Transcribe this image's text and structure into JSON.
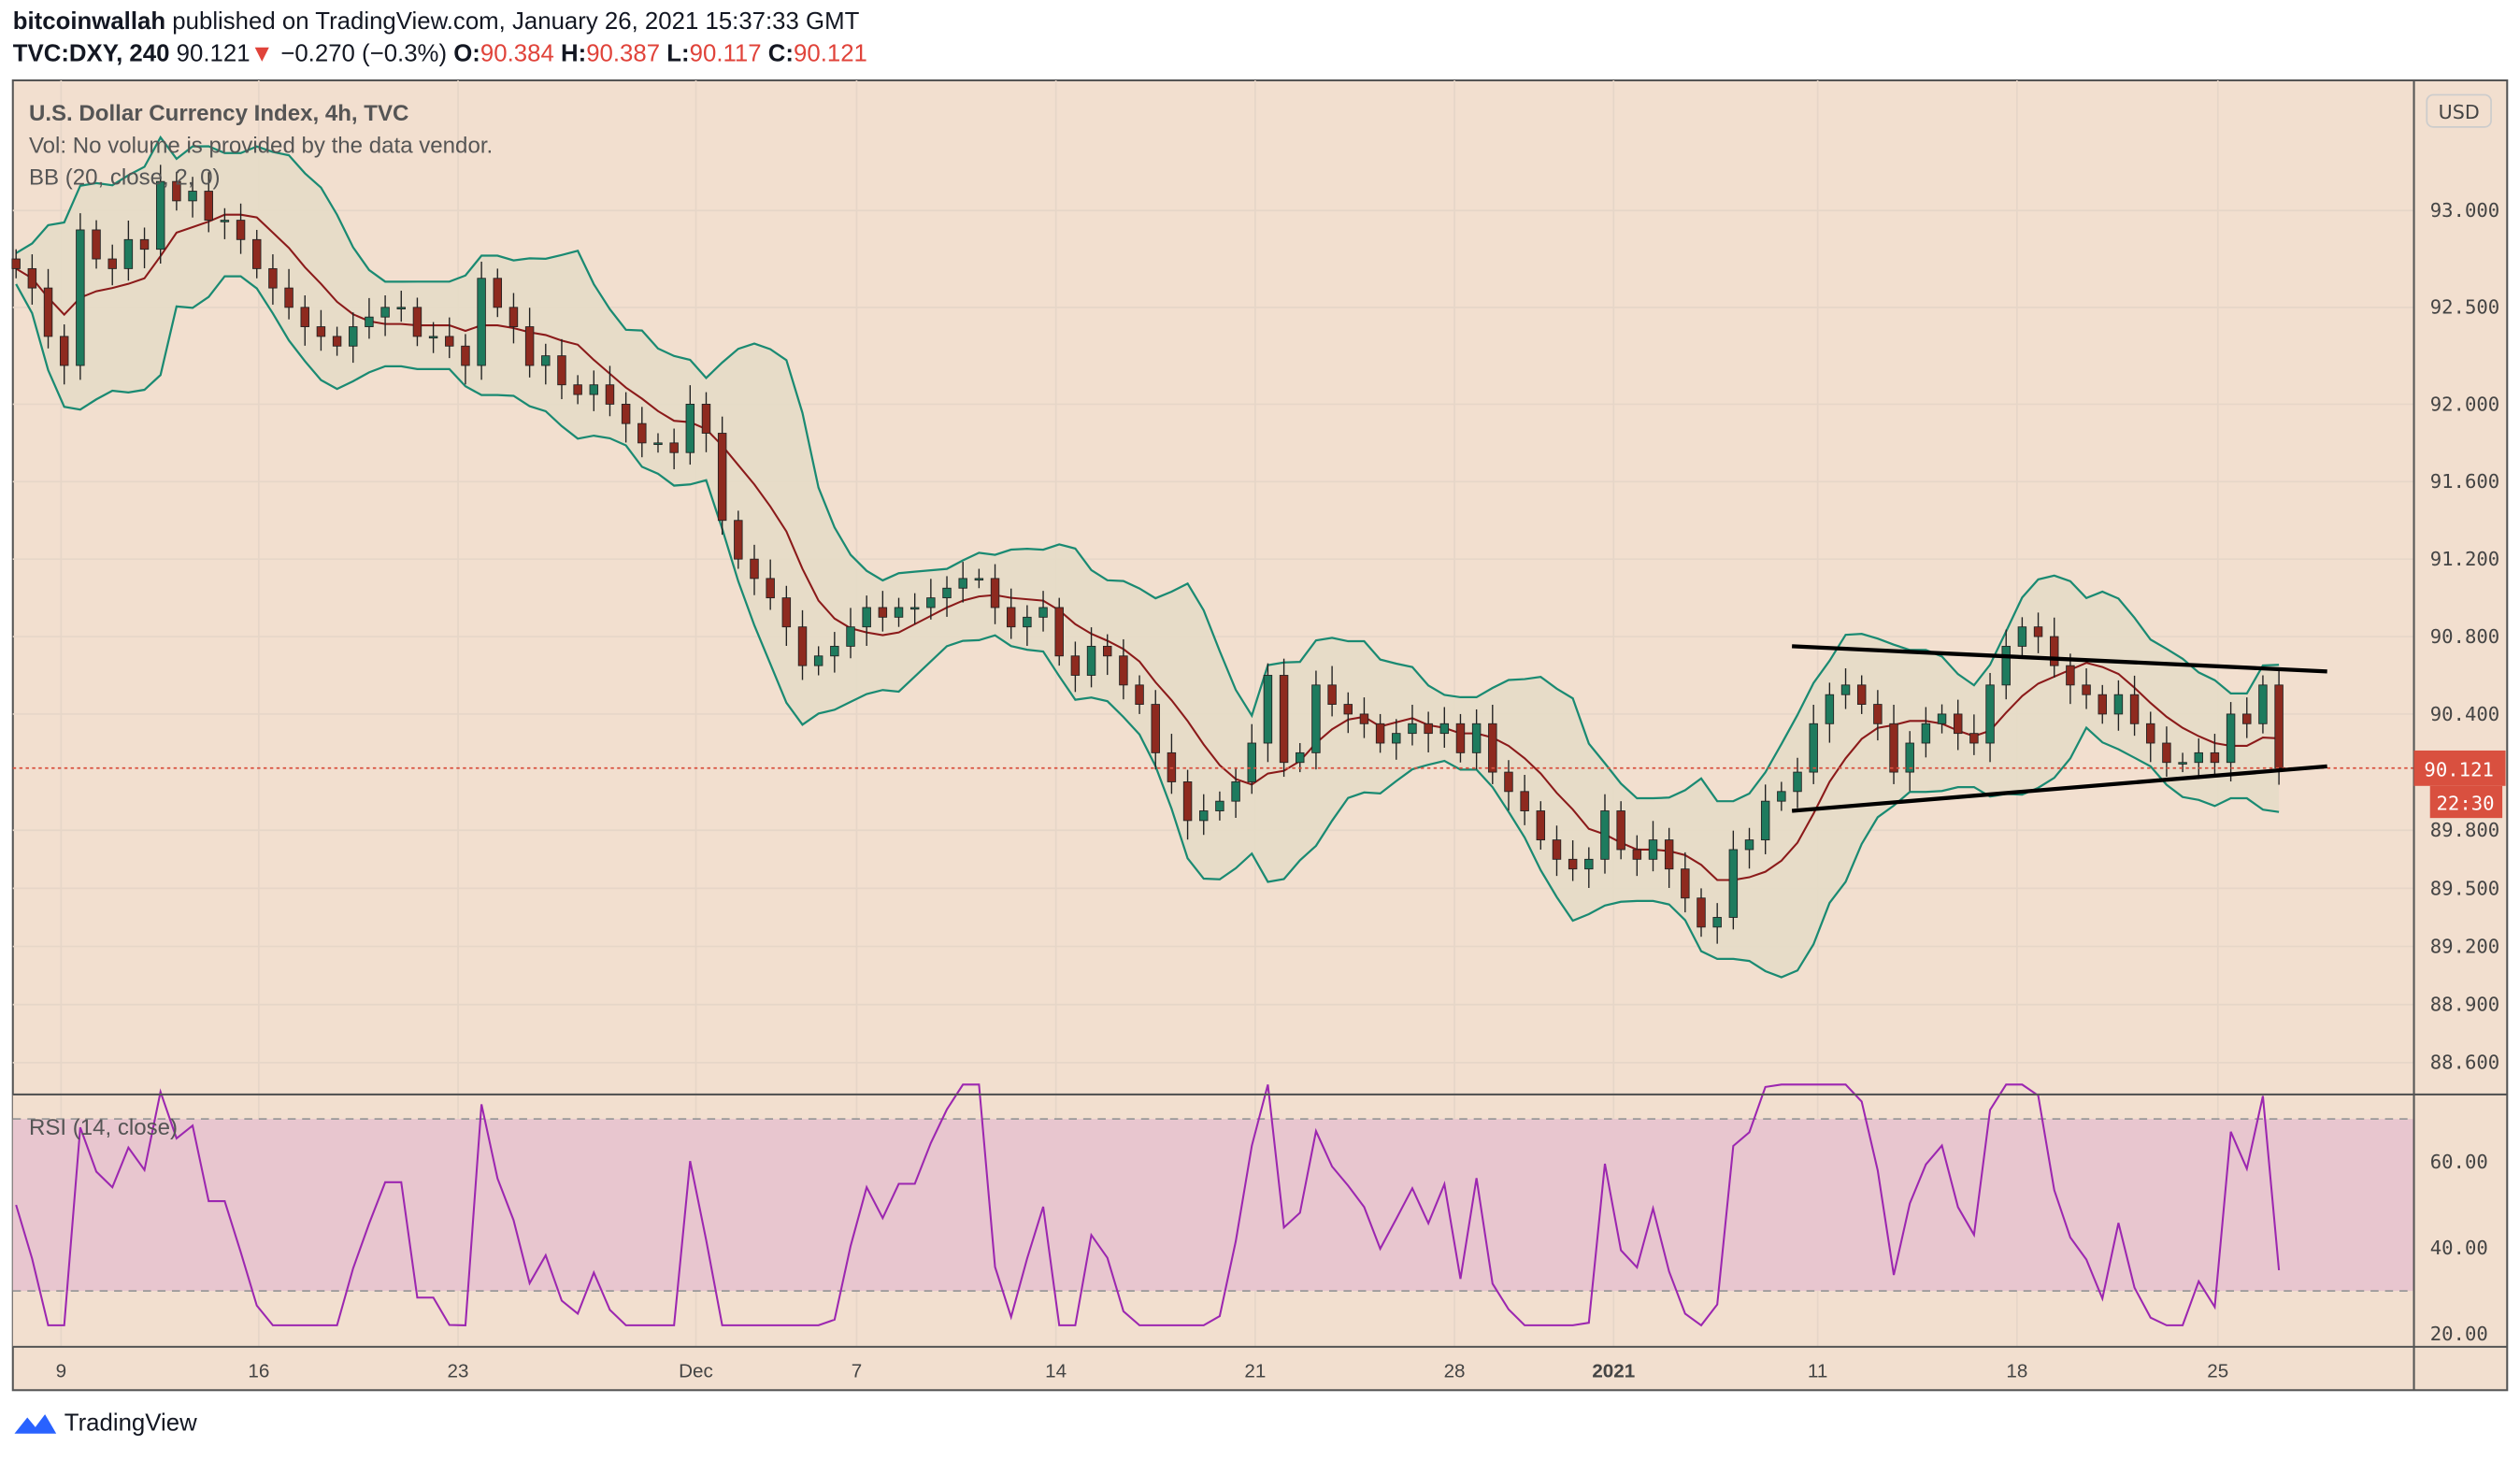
{
  "header": {
    "author": "bitcoinwallah",
    "published": "published on TradingView.com, January 26, 2021 15:37:33 GMT",
    "symbol": "TVC:DXY, 240",
    "last": "90.121",
    "change": "−0.270 (−0.3%)",
    "o_label": "O:",
    "o": "90.384",
    "h_label": "H:",
    "h": "90.387",
    "l_label": "L:",
    "l": "90.117",
    "c_label": "C:",
    "c": "90.121"
  },
  "legend": {
    "title": "U.S. Dollar Currency Index, 4h, TVC",
    "vol": "Vol: No volume is provided by the data vendor.",
    "bb": "BB (20, close, 2, 0)",
    "rsi": "RSI (14, close)"
  },
  "currency_button": "USD",
  "last_price_label": "90.121",
  "countdown": "22:30",
  "footer": {
    "brand": "TradingView"
  },
  "colors": {
    "background": "#f2dfcf",
    "up": "#1e7b5e",
    "down": "#8e2a1f",
    "bb_band": "#1a8a72",
    "bb_basis": "#8b1a1a",
    "rsi": "#9c27b0",
    "last_price": "#d9503f"
  },
  "chart_data": {
    "type": "candlestick",
    "price_ticks": [
      "93.000",
      "92.500",
      "92.000",
      "91.600",
      "91.200",
      "90.800",
      "90.400",
      "89.800",
      "89.500",
      "89.200",
      "88.900",
      "88.600"
    ],
    "rsi_ticks": [
      "60.00",
      "40.00",
      "20.00"
    ],
    "rsi_bands": [
      70,
      30
    ],
    "time_labels": [
      "9",
      "16",
      "23",
      "Dec",
      "7",
      "14",
      "21",
      "28",
      "2021",
      "11",
      "18",
      "25"
    ],
    "closes": [
      92.7,
      92.6,
      92.35,
      92.2,
      92.9,
      92.75,
      92.7,
      92.85,
      92.8,
      93.15,
      93.05,
      93.1,
      92.95,
      92.95,
      92.85,
      92.7,
      92.6,
      92.5,
      92.4,
      92.35,
      92.3,
      92.4,
      92.45,
      92.5,
      92.5,
      92.35,
      92.35,
      92.3,
      92.2,
      92.65,
      92.5,
      92.4,
      92.2,
      92.25,
      92.1,
      92.05,
      92.1,
      92.0,
      91.9,
      91.8,
      91.8,
      91.75,
      92.0,
      91.85,
      91.4,
      91.2,
      91.1,
      91.0,
      90.85,
      90.65,
      90.7,
      90.75,
      90.85,
      90.95,
      90.9,
      90.95,
      90.95,
      91.0,
      91.05,
      91.1,
      91.1,
      90.95,
      90.85,
      90.9,
      90.95,
      90.7,
      90.6,
      90.75,
      90.7,
      90.55,
      90.45,
      90.2,
      90.05,
      89.85,
      89.9,
      89.95,
      90.05,
      90.25,
      90.6,
      90.15,
      90.2,
      90.55,
      90.45,
      90.4,
      90.35,
      90.25,
      90.3,
      90.35,
      90.3,
      90.35,
      90.2,
      90.35,
      90.1,
      90.0,
      89.9,
      89.75,
      89.65,
      89.6,
      89.65,
      89.9,
      89.7,
      89.65,
      89.75,
      89.6,
      89.45,
      89.3,
      89.35,
      89.7,
      89.75,
      89.95,
      90.0,
      90.1,
      90.35,
      90.5,
      90.55,
      90.45,
      90.35,
      90.1,
      90.25,
      90.35,
      90.4,
      90.3,
      90.25,
      90.55,
      90.75,
      90.85,
      90.8,
      90.65,
      90.55,
      90.5,
      90.4,
      90.5,
      90.35,
      90.25,
      90.15,
      90.15,
      90.2,
      90.15,
      90.4,
      90.35,
      90.55,
      90.121
    ],
    "trendlines": [
      {
        "name": "upper",
        "from": 90.75,
        "to": 90.62
      },
      {
        "name": "lower",
        "from": 89.9,
        "to": 90.13
      }
    ]
  }
}
